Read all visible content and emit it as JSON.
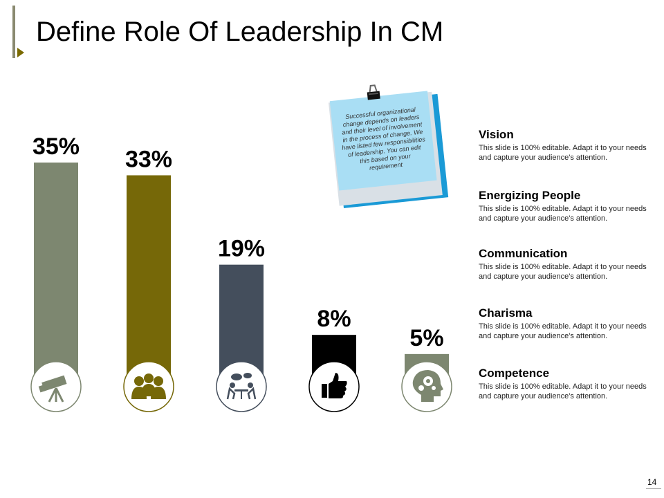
{
  "slide": {
    "title": "Define Role Of Leadership In CM",
    "page_number": "14"
  },
  "note": {
    "text": "Successful organizational change depends on leaders and their level of involvement in the process of change. We have listed few responsibilities of leadership. You can edit this based on your requirement"
  },
  "chart_data": {
    "type": "bar",
    "categories": [
      "Vision",
      "Energizing People",
      "Communication",
      "Charisma",
      "Competence"
    ],
    "values": [
      35,
      33,
      19,
      8,
      5
    ],
    "data_labels": [
      "35%",
      "33%",
      "19%",
      "8%",
      "5%"
    ],
    "colors": [
      "#7d8770",
      "#766808",
      "#444e5c",
      "#000000",
      "#7d8770"
    ],
    "icons": [
      "telescope-icon",
      "team-icon",
      "meeting-icon",
      "thumbs-up-icon",
      "brain-gears-icon"
    ],
    "ylim": [
      0,
      35
    ],
    "grid": false,
    "legend": "right"
  },
  "items": [
    {
      "title": "Vision",
      "desc": "This slide is 100% editable. Adapt it to your needs and capture your audience's attention."
    },
    {
      "title": "Energizing People",
      "desc": "This slide is 100% editable. Adapt it to your needs and capture your audience's attention."
    },
    {
      "title": "Communication",
      "desc": "This slide is 100% editable. Adapt it to your needs and capture your audience's attention."
    },
    {
      "title": "Charisma",
      "desc": "This slide is 100% editable. Adapt it to your needs and capture your audience's attention."
    },
    {
      "title": "Competence",
      "desc": "This slide is 100% editable. Adapt it to your needs and capture your audience's attention."
    }
  ]
}
